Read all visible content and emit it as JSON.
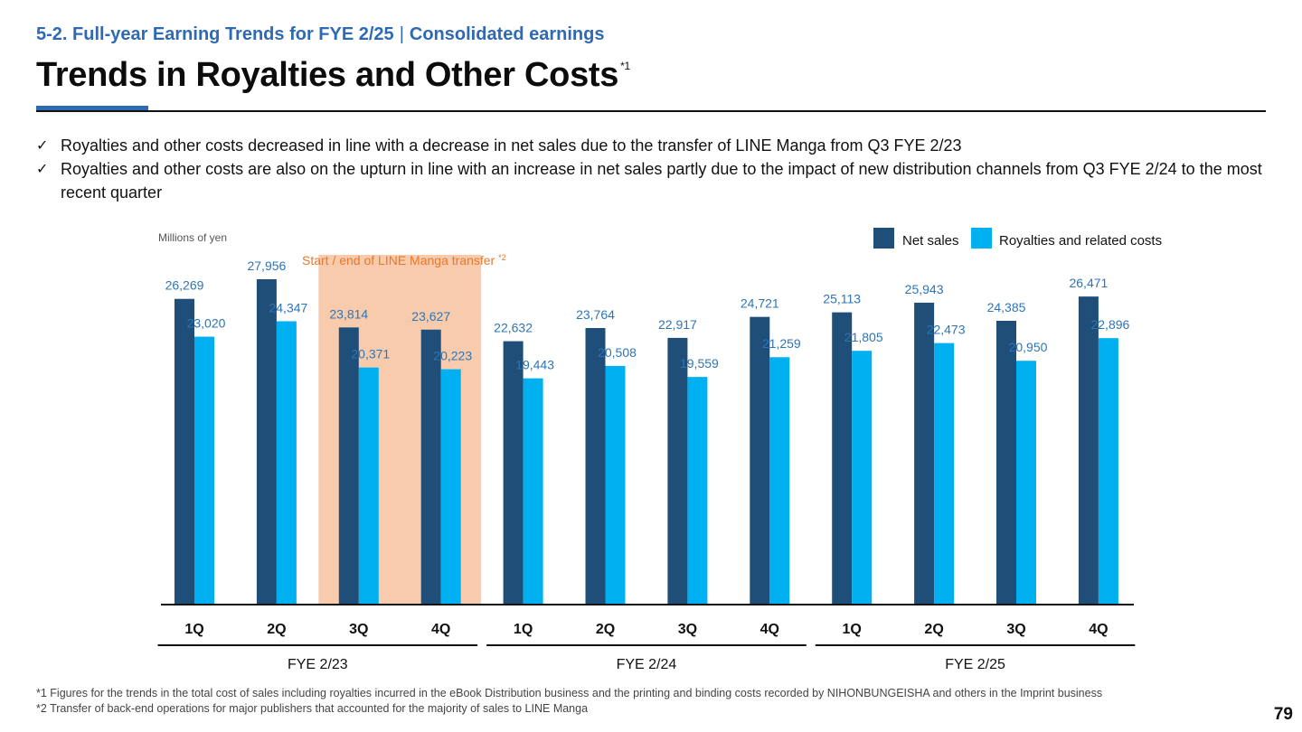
{
  "header": {
    "section_prefix": "5-2. Full-year Earning Trends for FYE 2/25",
    "section_separator": "|",
    "section_suffix": "Consolidated earnings",
    "title": "Trends in Royalties and Other Costs",
    "title_note": "*1"
  },
  "bullets": [
    "Royalties and other costs decreased in line with a decrease in net sales due to the transfer of LINE Manga from Q3 FYE 2/23",
    "Royalties and other costs are also on the upturn in line with an increase in net sales partly due to the impact of new distribution channels from Q3 FYE 2/24 to the most recent quarter"
  ],
  "check_icon": "check-icon",
  "chart_data": {
    "type": "bar",
    "units_label": "Millions of yen",
    "categories": [
      "1Q",
      "2Q",
      "3Q",
      "4Q",
      "1Q",
      "2Q",
      "3Q",
      "4Q",
      "1Q",
      "2Q",
      "3Q",
      "4Q"
    ],
    "groups": [
      {
        "label": "FYE 2/23",
        "start": 0,
        "end": 3
      },
      {
        "label": "FYE 2/24",
        "start": 4,
        "end": 7
      },
      {
        "label": "FYE 2/25",
        "start": 8,
        "end": 11
      }
    ],
    "series": [
      {
        "name": "Net sales",
        "color": "#1f4e79",
        "values": [
          26269,
          27956,
          23814,
          23627,
          22632,
          23764,
          22917,
          24721,
          25113,
          25943,
          24385,
          26471
        ],
        "labels": [
          "26,269",
          "27,956",
          "23,814",
          "23,627",
          "22,632",
          "23,764",
          "22,917",
          "24,721",
          "25,113",
          "25,943",
          "24,385",
          "26,471"
        ]
      },
      {
        "name": "Royalties and related costs",
        "color": "#00b0f0",
        "values": [
          23020,
          24347,
          20371,
          20223,
          19443,
          20508,
          19559,
          21259,
          21805,
          22473,
          20950,
          22896
        ],
        "labels": [
          "23,020",
          "24,347",
          "20,371",
          "20,223",
          "19,443",
          "20,508",
          "19,559",
          "21,259",
          "21,805",
          "22,473",
          "20,950",
          "22,896"
        ]
      }
    ],
    "ylim": [
      0,
      28500
    ],
    "grid": false,
    "legend": "top-right",
    "highlight": {
      "start": 2,
      "end": 3,
      "color": "#f8cbad",
      "label": "Start / end of LINE Manga transfer",
      "note": "*2",
      "label_color": "#e7782e"
    }
  },
  "footnotes": [
    "*1 Figures for the trends in the total cost of sales including royalties incurred in the eBook Distribution business and the printing and binding costs recorded by NIHONBUNGEISHA and others in the Imprint business",
    "*2 Transfer of back-end operations for major publishers that accounted for the majority of sales to LINE Manga"
  ],
  "page_number": "79"
}
